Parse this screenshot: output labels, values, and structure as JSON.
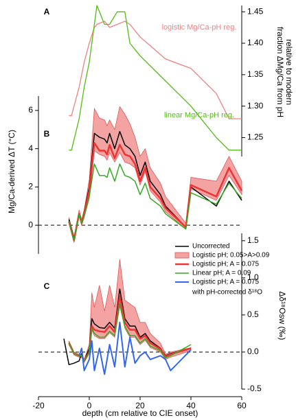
{
  "chart_data": [
    {
      "type": "line",
      "label": "A",
      "yaxis_side": "right",
      "ylabel": [
        "fraction ΔMg/Ca from pH",
        "relative to modern"
      ],
      "xlim": [
        -20,
        60
      ],
      "ylim": [
        1.22,
        1.46
      ],
      "yticks": [
        1.25,
        {
          "value": 1.3,
          "label": "1.30"
        },
        1.35,
        {
          "value": 1.4,
          "label": "1.40"
        },
        1.45
      ],
      "x": [
        -8,
        -7,
        -4,
        -2,
        0,
        2,
        3,
        6,
        8,
        11,
        14,
        16,
        20,
        30,
        40,
        50,
        55,
        60
      ],
      "series": [
        {
          "name": "logistic Mg/Ca-pH reg.",
          "color": "#f08080",
          "line_width": 1.3,
          "values": [
            1.285,
            1.285,
            1.33,
            1.37,
            1.4,
            1.425,
            1.43,
            1.435,
            1.425,
            1.43,
            1.435,
            1.43,
            1.41,
            1.375,
            1.36,
            1.32,
            1.28,
            1.28
          ]
        },
        {
          "name": "linear Mg/Ca-pH reg.",
          "color": "#55bb11",
          "line_width": 1.3,
          "values": [
            1.23,
            1.23,
            1.28,
            1.33,
            1.37,
            1.43,
            1.46,
            1.43,
            1.43,
            1.45,
            1.45,
            1.4,
            1.38,
            1.34,
            1.3,
            1.25,
            1.23,
            1.23
          ]
        }
      ]
    },
    {
      "type": "line",
      "label": "B",
      "yaxis_side": "left",
      "zero_line": true,
      "ylabel": [
        "Mg/Ca-derived ΔT (°C)"
      ],
      "xlim": [
        -20,
        60
      ],
      "ylim": [
        -1.5,
        6.75
      ],
      "yticks": [
        0,
        2,
        4,
        6
      ],
      "x": [
        -8,
        -6,
        -4,
        -3,
        -2,
        0,
        2,
        4,
        6,
        7,
        8,
        10,
        12,
        14,
        16,
        18,
        20,
        22,
        24,
        28,
        30,
        38,
        40,
        50,
        55,
        60
      ],
      "series": [
        {
          "color": "#000000",
          "line_width": 1.5,
          "values": [
            0.3,
            -0.7,
            0.6,
            0.1,
            0.7,
            2.0,
            4.8,
            4.6,
            4.5,
            4.3,
            4.8,
            4.0,
            4.9,
            4.2,
            4.0,
            3.6,
            2.6,
            3.3,
            2.3,
            1.6,
            1.0,
            -0.1,
            2.0,
            1.0,
            2.3,
            1.3
          ]
        },
        {
          "color": "#f4a3a3",
          "lower": [
            0.1,
            -0.9,
            0.5,
            0.0,
            0.4,
            1.4,
            3.9,
            3.7,
            3.6,
            3.4,
            3.8,
            3.3,
            3.8,
            3.3,
            3.2,
            3.0,
            2.1,
            2.8,
            1.8,
            1.2,
            0.7,
            -0.2,
            1.9,
            1.3,
            2.6,
            1.6
          ],
          "upper": [
            0.4,
            -0.6,
            0.8,
            0.3,
            0.8,
            2.4,
            6.1,
            5.6,
            5.5,
            5.2,
            5.5,
            5.0,
            6.2,
            5.8,
            5.3,
            4.6,
            3.6,
            4.0,
            3.0,
            2.2,
            1.5,
            0.1,
            2.5,
            2.3,
            3.6,
            2.3
          ]
        },
        {
          "color": "#ee3333",
          "line_width": 2.5,
          "values": [
            0.2,
            -0.8,
            0.6,
            0.1,
            0.6,
            1.8,
            4.3,
            3.9,
            3.9,
            3.7,
            4.2,
            3.5,
            4.2,
            3.7,
            3.6,
            3.2,
            2.3,
            3.0,
            2.0,
            1.4,
            0.9,
            -0.1,
            2.1,
            1.5,
            3.0,
            1.8
          ]
        },
        {
          "color": "#33aa22",
          "line_width": 1.5,
          "values": [
            0.2,
            -0.8,
            0.6,
            0.1,
            0.5,
            1.5,
            3.2,
            2.6,
            2.6,
            2.5,
            3.0,
            2.3,
            3.2,
            2.6,
            2.5,
            2.3,
            1.6,
            2.2,
            1.4,
            1.0,
            0.6,
            -0.2,
            1.7,
            1.1,
            2.2,
            1.4
          ]
        }
      ]
    },
    {
      "type": "line",
      "label": "C",
      "yaxis_side": "right",
      "zero_line": true,
      "legend": "upper right",
      "ylabel": [
        "Δδ¹⁸Osw (‰)"
      ],
      "xlabel": "depth (cm relative to CIE onset)",
      "xlim": [
        -20,
        60
      ],
      "xticks": [
        -20,
        0,
        20,
        40,
        60
      ],
      "ylim": [
        -0.5,
        1.6
      ],
      "yticks": [
        -0.5,
        {
          "value": 0,
          "label": "0.0"
        },
        0.5,
        {
          "value": 1,
          "label": "1.0"
        },
        1.5
      ],
      "x": [
        -10,
        -8,
        -6,
        -4,
        -3,
        -2,
        0,
        1,
        2,
        4,
        6,
        8,
        10,
        12,
        14,
        16,
        18,
        20,
        22,
        24,
        28,
        30,
        32,
        40
      ],
      "series": [
        {
          "name": "Uncorrected",
          "color": "#000000",
          "line_width": 1.5,
          "values": [
            0.18,
            -0.17,
            -0.15,
            -0.12,
            -0.02,
            -0.12,
            0.05,
            0.45,
            0.38,
            0.33,
            0.32,
            0.4,
            0.32,
            0.85,
            0.45,
            0.35,
            0.35,
            0.2,
            0.25,
            0.15,
            0.05,
            -0.05,
            -0.02,
            0.05
          ]
        },
        {
          "name": "Logistic pH; 0.05>A>0.09",
          "color": "#f4a3a3",
          "lower": [
            null,
            0.1,
            -0.04,
            -0.07,
            -0.07,
            -0.14,
            -0.02,
            0.3,
            0.22,
            0.18,
            0.18,
            0.26,
            0.2,
            0.62,
            0.32,
            0.2,
            0.2,
            0.1,
            0.16,
            0.06,
            0.0,
            -0.1,
            -0.07,
            0.02
          ],
          "upper": [
            null,
            0.15,
            0.0,
            -0.03,
            -0.03,
            -0.1,
            0.1,
            0.8,
            0.6,
            0.9,
            0.55,
            0.9,
            0.6,
            1.25,
            0.7,
            0.65,
            0.6,
            0.4,
            0.4,
            0.25,
            0.12,
            -0.03,
            0.0,
            0.06
          ]
        },
        {
          "name": "Logistic pH; A = 0.075",
          "color": "#ee3333",
          "line_width": 2.5,
          "values": [
            null,
            0.12,
            -0.02,
            -0.05,
            -0.05,
            -0.12,
            0.0,
            0.35,
            0.3,
            0.28,
            0.27,
            0.35,
            0.27,
            0.75,
            0.4,
            0.3,
            0.3,
            0.18,
            0.22,
            0.12,
            0.04,
            -0.06,
            -0.03,
            0.05
          ]
        },
        {
          "name": "Linear pH; A = 0.09",
          "color": "#33aa22",
          "line_width": 1.5,
          "values": [
            null,
            0.12,
            -0.02,
            -0.05,
            -0.05,
            -0.12,
            0.0,
            0.32,
            0.25,
            0.2,
            0.2,
            0.28,
            0.22,
            0.65,
            0.35,
            0.22,
            0.22,
            0.12,
            0.18,
            0.08,
            0.02,
            -0.08,
            -0.05,
            0.1
          ]
        },
        {
          "name": "Logistic pH; A = 0.075",
          "note": "with pH-corrected δ¹⁸O",
          "color": "#3366ee",
          "line_width": 2,
          "values": [
            null,
            null,
            null,
            -0.05,
            0.05,
            -0.25,
            -0.1,
            0.15,
            -0.25,
            0.05,
            -0.3,
            0.1,
            -0.2,
            0.4,
            -0.2,
            0.2,
            -0.15,
            -0.05,
            0.0,
            -0.1,
            -0.05,
            -0.1,
            -0.25,
            0.03
          ]
        }
      ]
    }
  ]
}
